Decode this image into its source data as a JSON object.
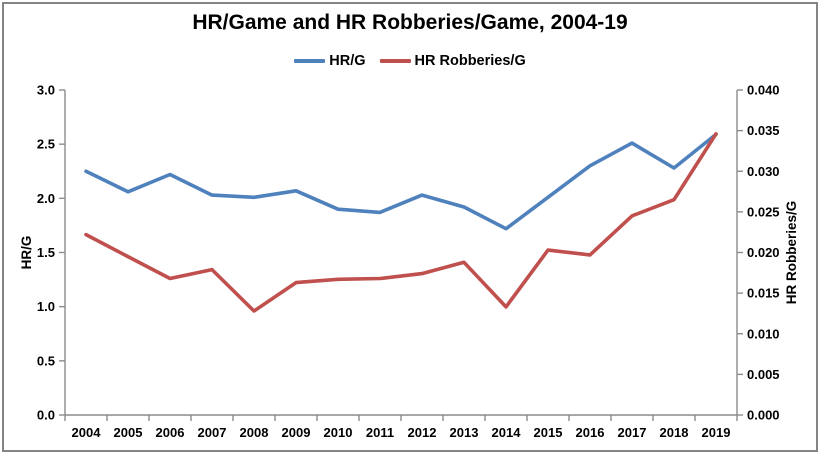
{
  "window": {
    "background_color": "#ffffff",
    "border_color": "#848484"
  },
  "chart_data": {
    "type": "line",
    "title": "HR/Game and HR Robberies/Game, 2004-19",
    "legend_position": "top",
    "grid": false,
    "categories": [
      "2004",
      "2005",
      "2006",
      "2007",
      "2008",
      "2009",
      "2010",
      "2011",
      "2012",
      "2013",
      "2014",
      "2015",
      "2016",
      "2017",
      "2018",
      "2019"
    ],
    "series": [
      {
        "name": "HR/G",
        "axis": "left",
        "color": "#4F81BD",
        "values": [
          2.25,
          2.06,
          2.22,
          2.03,
          2.01,
          2.07,
          1.9,
          1.87,
          2.03,
          1.92,
          1.72,
          2.01,
          2.3,
          2.51,
          2.28,
          2.59
        ]
      },
      {
        "name": "HR Robberies/G",
        "axis": "right",
        "color": "#C0504D",
        "values": [
          0.0222,
          0.0195,
          0.0168,
          0.0179,
          0.0128,
          0.0163,
          0.0167,
          0.0168,
          0.0174,
          0.0188,
          0.0133,
          0.0203,
          0.0197,
          0.0245,
          0.0265,
          0.0346
        ]
      }
    ],
    "left_axis": {
      "label": "HR/G",
      "min": 0,
      "max": 3,
      "step": 0.5,
      "decimals": 1
    },
    "right_axis": {
      "label": "HR Robberies/G",
      "min": 0,
      "max": 0.04,
      "step": 0.005,
      "decimals": 3
    },
    "x_axis": {
      "tick_placement": "between-categories"
    },
    "axis_color": "#8C8C8C",
    "text_color": "#000000",
    "line_width": 3.6
  }
}
